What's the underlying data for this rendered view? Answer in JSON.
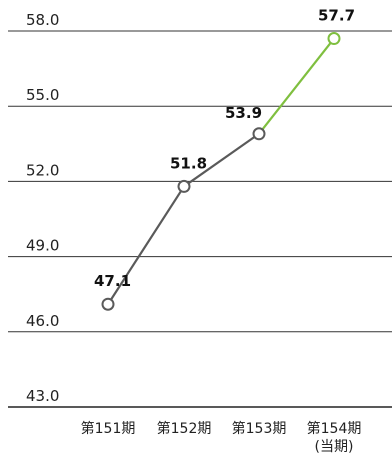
{
  "chart_data": {
    "type": "line",
    "categories": [
      "第151期",
      "第152期",
      "第153期",
      "第154期"
    ],
    "category_sublabels": [
      "",
      "",
      "",
      "(当期)"
    ],
    "values": [
      47.1,
      51.8,
      53.9,
      57.7
    ],
    "value_labels": [
      "47.1",
      "51.8",
      "53.9",
      "57.7"
    ],
    "y_ticks": [
      "58.0",
      "55.0",
      "52.0",
      "49.0",
      "46.0",
      "43.0"
    ],
    "ylim": [
      43.0,
      58.0
    ],
    "grid": true,
    "colors": {
      "line_main": "#5a5a5a",
      "line_current": "#7fbf3f",
      "marker_fill": "#ffffff",
      "grid": "#333333"
    }
  }
}
